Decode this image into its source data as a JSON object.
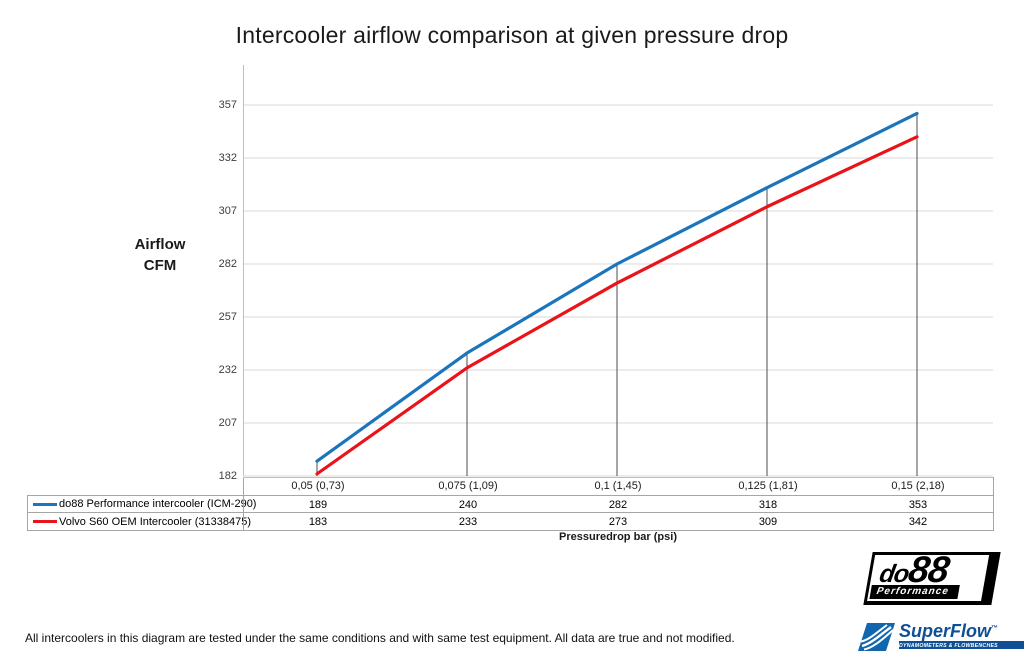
{
  "title": "Intercooler airflow comparison at given pressure drop",
  "y_axis": {
    "title_line1": "Airflow",
    "title_line2": "CFM",
    "ticks": [
      357,
      332,
      307,
      282,
      257,
      232,
      207,
      182
    ]
  },
  "x_axis": {
    "title": "Pressuredrop bar (psi)"
  },
  "chart_data": {
    "type": "line",
    "title": "Intercooler airflow comparison at given pressure drop",
    "xlabel": "Pressuredrop bar (psi)",
    "ylabel": "Airflow CFM",
    "categories": [
      "0,05 (0,73)",
      "0,075 (1,09)",
      "0,1 (1,45)",
      "0,125 (1,81)",
      "0,15 (2,18)"
    ],
    "series": [
      {
        "name": "do88 Performance intercooler (ICM-290)",
        "color": "#1b75bc",
        "values": [
          189,
          240,
          282,
          318,
          353
        ]
      },
      {
        "name": "Volvo S60 OEM Intercooler (31338475)",
        "color": "#e91319",
        "values": [
          183,
          233,
          273,
          309,
          342
        ]
      }
    ],
    "ylim": [
      182,
      375
    ],
    "y_ticks": [
      182,
      207,
      232,
      257,
      282,
      307,
      332,
      357
    ],
    "grid": true,
    "legend_position": "data-table-left",
    "droplines": true
  },
  "footer": {
    "disclaimer": "All intercoolers in this diagram are tested under the same conditions and with same test equipment. All data are true and not modified."
  },
  "logos": {
    "do88": {
      "wordmark_prefix": "do",
      "wordmark_number": "88",
      "subtitle": "Performance"
    },
    "superflow": {
      "wordmark": "SuperFlow",
      "trademark": "™",
      "subtitle": "DYNAMOMETERS & FLOWBENCHES"
    }
  },
  "colors": {
    "series_blue": "#1b75bc",
    "series_red": "#e91319",
    "gridline": "#d9d9d9",
    "axis_line": "#bfbfbf",
    "dropline": "#4d4d4d",
    "table_border": "#a6a6a6",
    "superflow_blue": "#0f4f96",
    "logo_black": "#000000"
  }
}
